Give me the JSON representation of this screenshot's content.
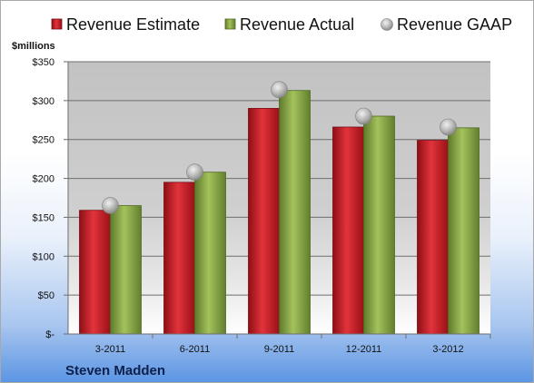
{
  "chart_data": {
    "type": "bar",
    "categories": [
      "3-2011",
      "6-2011",
      "9-2011",
      "12-2011",
      "3-2012"
    ],
    "series": [
      {
        "name": "Revenue Estimate",
        "kind": "bar",
        "color": "#d0202a",
        "values": [
          159,
          195,
          290,
          266,
          249
        ]
      },
      {
        "name": "Revenue Actual",
        "kind": "bar",
        "color": "#8fae4a",
        "values": [
          165,
          208,
          313,
          280,
          265
        ]
      },
      {
        "name": "Revenue GAAP",
        "kind": "marker",
        "color": "#b4b4b4",
        "values": [
          165,
          208,
          314,
          280,
          266
        ]
      }
    ],
    "ylabel": "$millions",
    "ylim": [
      0,
      350
    ],
    "yticks": [
      0,
      50,
      100,
      150,
      200,
      250,
      300,
      350
    ],
    "ytick_labels": [
      "$-",
      "$50",
      "$100",
      "$150",
      "$200",
      "$250",
      "$300",
      "$350"
    ],
    "grid": true,
    "legend_position": "top",
    "footer": "Steven Madden"
  }
}
